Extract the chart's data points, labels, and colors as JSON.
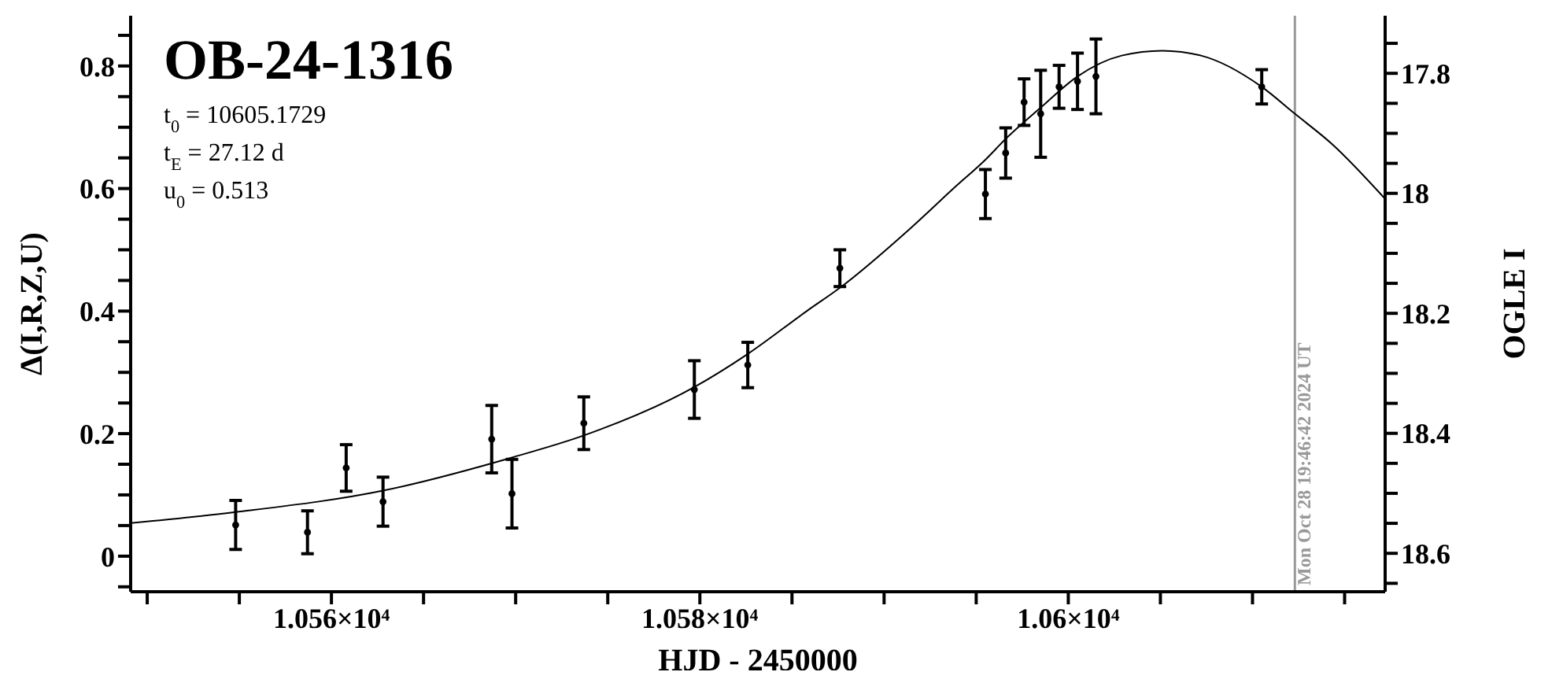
{
  "chart_data": {
    "type": "scatter",
    "title": "OB-24-1316",
    "xlabel": "HJD - 2450000",
    "ylabel": "Δ(I,R,Z,U)",
    "y2label": "OGLE I",
    "annotations": [
      "t$_{0}$ = 10605.1729",
      "t$_{E}$ = 27.12 d",
      "u$_{0}$ = 0.513",
      {
        "text": "Mon Oct 28 19:46:42 2024 UT",
        "x": 10612.3
      }
    ],
    "xlim": [
      10549.1,
      10617.2
    ],
    "xticks": [
      {
        "value": 10550,
        "label": null
      },
      {
        "value": 10555,
        "label": null
      },
      {
        "value": 10560,
        "label": "1.056×10⁴"
      },
      {
        "value": 10565,
        "label": null
      },
      {
        "value": 10570,
        "label": null
      },
      {
        "value": 10575,
        "label": null
      },
      {
        "value": 10580,
        "label": "1.058×10⁴"
      },
      {
        "value": 10585,
        "label": null
      },
      {
        "value": 10590,
        "label": null
      },
      {
        "value": 10595,
        "label": null
      },
      {
        "value": 10600,
        "label": "1.06×10⁴"
      },
      {
        "value": 10605,
        "label": null
      },
      {
        "value": 10610,
        "label": null
      },
      {
        "value": 10615,
        "label": null
      }
    ],
    "ylim": [
      -0.058,
      0.882
    ],
    "yticks": [
      {
        "value": -0.05,
        "label": null
      },
      0,
      {
        "value": 0.05,
        "label": null
      },
      {
        "value": 0.1,
        "label": null
      },
      {
        "value": 0.15,
        "label": null
      },
      0.2,
      {
        "value": 0.25,
        "label": null
      },
      {
        "value": 0.3,
        "label": null
      },
      {
        "value": 0.35,
        "label": null
      },
      0.4,
      {
        "value": 0.45,
        "label": null
      },
      {
        "value": 0.5,
        "label": null
      },
      {
        "value": 0.55,
        "label": null
      },
      0.6,
      {
        "value": 0.65,
        "label": null
      },
      {
        "value": 0.7,
        "label": null
      },
      {
        "value": 0.75,
        "label": null
      },
      0.8,
      {
        "value": 0.85,
        "label": null
      }
    ],
    "y2lim": [
      18.664,
      17.704
    ],
    "y2ticks": [
      {
        "value": 17.75,
        "label": null
      },
      17.8,
      {
        "value": 17.85,
        "label": null
      },
      {
        "value": 17.9,
        "label": null
      },
      {
        "value": 17.95,
        "label": null
      },
      18,
      {
        "value": 18.05,
        "label": null
      },
      {
        "value": 18.1,
        "label": null
      },
      {
        "value": 18.15,
        "label": null
      },
      18.2,
      {
        "value": 18.25,
        "label": null
      },
      {
        "value": 18.3,
        "label": null
      },
      {
        "value": 18.35,
        "label": null
      },
      18.4,
      {
        "value": 18.45,
        "label": null
      },
      {
        "value": 18.5,
        "label": null
      },
      {
        "value": 18.55,
        "label": null
      },
      18.6,
      {
        "value": 18.65,
        "label": null
      }
    ],
    "ref_lines": [
      {
        "axis": "x",
        "value": 10612.3,
        "color": "#999999"
      }
    ],
    "series": [
      {
        "color": "#000000",
        "marker": "circle",
        "x": [
          10554.8,
          10558.7,
          10560.8,
          10562.8,
          10568.7,
          10569.8,
          10573.7,
          10579.7,
          10582.6,
          10587.6,
          10595.5,
          10596.6,
          10597.6,
          10598.5,
          10599.5,
          10600.5,
          10601.5,
          10610.5
        ],
        "values": [
          0.051,
          0.039,
          0.144,
          0.089,
          0.191,
          0.102,
          0.217,
          0.272,
          0.312,
          0.47,
          0.591,
          0.658,
          0.741,
          0.722,
          0.766,
          0.775,
          0.783,
          0.766
        ],
        "errors": [
          0.04,
          0.035,
          0.038,
          0.04,
          0.055,
          0.056,
          0.043,
          0.047,
          0.037,
          0.03,
          0.04,
          0.041,
          0.038,
          0.071,
          0.035,
          0.046,
          0.061,
          0.028
        ]
      },
      {
        "type": "line",
        "color": "#000000",
        "marker": "none",
        "x": [
          10549.1,
          10554.8,
          10562.8,
          10569.8,
          10573.7,
          10579.7,
          10582.6,
          10585.8,
          10587.6,
          10591.5,
          10593.8,
          10595.5,
          10596.6,
          10598.5,
          10600.5,
          10602.9,
          10605.1,
          10607.2,
          10610.5,
          10612.3,
          10614.3,
          10617.2
        ],
        "values": [
          0.054,
          0.072,
          0.107,
          0.161,
          0.197,
          0.276,
          0.33,
          0.4,
          0.438,
          0.537,
          0.601,
          0.647,
          0.681,
          0.732,
          0.783,
          0.817,
          0.825,
          0.817,
          0.766,
          0.722,
          0.673,
          0.583
        ]
      }
    ]
  }
}
